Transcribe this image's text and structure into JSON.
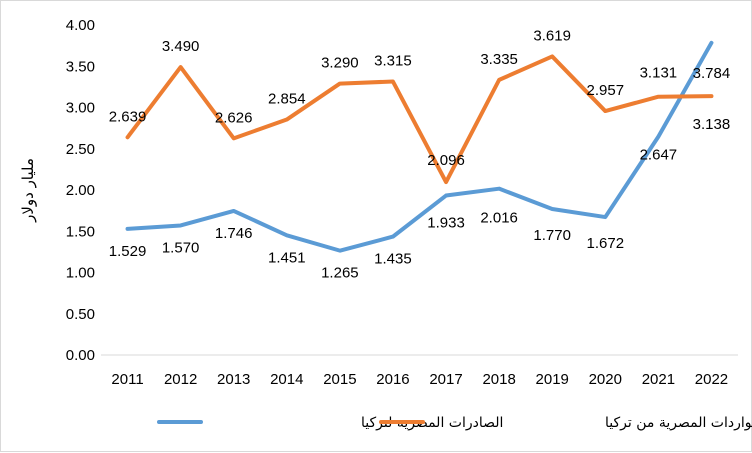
{
  "chart_data": {
    "type": "line",
    "title": "",
    "xlabel": "",
    "ylabel": "مليار دولار",
    "ylim": [
      0,
      4
    ],
    "yticks": [
      "0.00",
      "0.50",
      "1.00",
      "1.50",
      "2.00",
      "2.50",
      "3.00",
      "3.50",
      "4.00"
    ],
    "grid": false,
    "legend_position": "bottom",
    "categories": [
      "2011",
      "2012",
      "2013",
      "2014",
      "2015",
      "2016",
      "2017",
      "2018",
      "2019",
      "2020",
      "2021",
      "2022"
    ],
    "series": [
      {
        "name": "الصادرات المصرية لتركيا",
        "color": "#5B9BD5",
        "values": [
          1.529,
          1.57,
          1.746,
          1.451,
          1.265,
          1.435,
          1.933,
          2.016,
          1.77,
          1.672,
          2.647,
          3.784
        ],
        "labels": [
          "1.529",
          "1.570",
          "1.746",
          "1.451",
          "1.265",
          "1.435",
          "1.933",
          "2.016",
          "1.770",
          "1.672",
          "2.647",
          "3.784"
        ]
      },
      {
        "name": "الواردات المصرية من تركيا",
        "color": "#ED7D31",
        "values": [
          2.639,
          3.49,
          2.626,
          2.854,
          3.29,
          3.315,
          2.096,
          3.335,
          3.619,
          2.957,
          3.131,
          3.138
        ],
        "labels": [
          "2.639",
          "3.490",
          "2.626",
          "2.854",
          "3.290",
          "3.315",
          "2.096",
          "3.335",
          "3.619",
          "2.957",
          "3.131",
          "3.138"
        ]
      }
    ]
  }
}
